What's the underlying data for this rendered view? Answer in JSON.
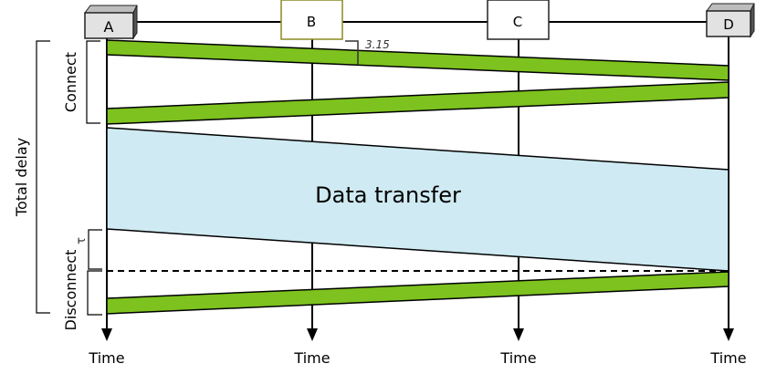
{
  "nodes": [
    {
      "id": "A",
      "label": "A"
    },
    {
      "id": "B",
      "label": "B"
    },
    {
      "id": "C",
      "label": "C"
    },
    {
      "id": "D",
      "label": "D"
    }
  ],
  "time_label": "Time",
  "phases": {
    "connect": "Connect",
    "data_transfer": "Data transfer",
    "disconnect": "Disconnect",
    "total_delay": "Total delay"
  },
  "annotations": {
    "segment_delay": "3.15",
    "disconnect_mark": "τ"
  },
  "colors": {
    "signal_band": "#7dc21e",
    "data_band": "#cfeaf2",
    "end_box": "#e2e2e2",
    "relay_box_border": "#8a8a20"
  }
}
